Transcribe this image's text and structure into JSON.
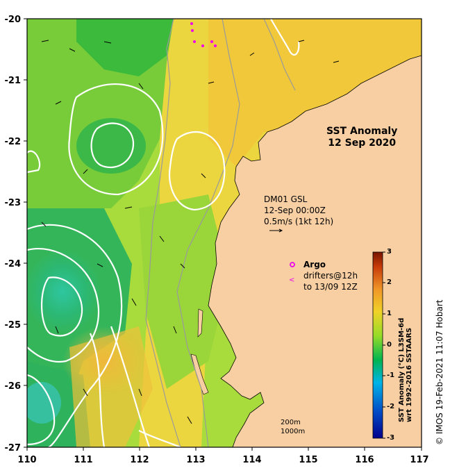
{
  "map": {
    "title_line1": "SST Anomaly",
    "title_line2": "12 Sep 2020",
    "current_info": [
      "DM01 GSL",
      "12-Sep 00:00Z",
      "0.5m/s (1kt 12h)"
    ],
    "argo_label": "Argo",
    "drifter_label_line1": "drifters@12h",
    "drifter_label_line2": "to 13/09 12Z",
    "depth_labels": [
      "200m",
      "1000m"
    ],
    "x_ticks": [
      "110",
      "111",
      "112",
      "113",
      "114",
      "115",
      "116",
      "117"
    ],
    "y_ticks": [
      "-20",
      "-21",
      "-22",
      "-23",
      "-24",
      "-25",
      "-26",
      "-27"
    ],
    "extent": {
      "lon_min": 110,
      "lon_max": 117,
      "lat_min": -27,
      "lat_max": -20
    },
    "land_color": "#f8cfa3",
    "argo_color": "#ee00ee"
  },
  "colorbar": {
    "title_line1": "SST Anomaly (°C) L3SM-6d",
    "title_line2": "wrt 1992-2016 SSTAARS",
    "ticks": [
      "3",
      "2",
      "1",
      "0",
      "-1",
      "-2",
      "-3"
    ],
    "range": [
      -3,
      3
    ],
    "colors": [
      "#00008b",
      "#0050c8",
      "#00b4e6",
      "#00b450",
      "#96dc28",
      "#f0d228",
      "#f09628",
      "#c83c0a",
      "#781400"
    ]
  },
  "credit": "© IMOS 19-Feb-2021 11:07 Hobart"
}
